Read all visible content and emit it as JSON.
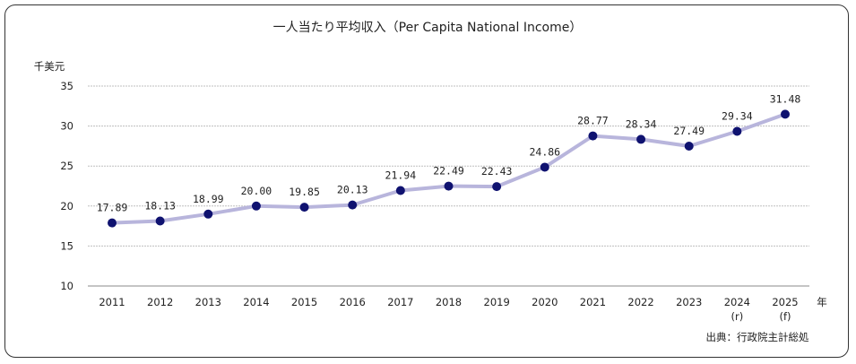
{
  "chart_data": {
    "type": "line",
    "title": "一人当たり平均収入（Per Capita National Income）",
    "ylabel": "千美元",
    "xlabel": "年",
    "categories": [
      "2011",
      "2012",
      "2013",
      "2014",
      "2015",
      "2016",
      "2017",
      "2018",
      "2019",
      "2020",
      "2021",
      "2022",
      "2023",
      "2024",
      "2025"
    ],
    "category_notes": [
      "",
      "",
      "",
      "",
      "",
      "",
      "",
      "",
      "",
      "",
      "",
      "",
      "",
      "(r)",
      "(f)"
    ],
    "series": [
      {
        "values": [
          17.89,
          18.13,
          18.99,
          20.0,
          19.85,
          20.13,
          21.94,
          22.49,
          22.43,
          24.86,
          28.77,
          28.34,
          27.49,
          29.34,
          31.48
        ],
        "labels": [
          "17.89",
          "18.13",
          "18.99",
          "20.00",
          "19.85",
          "20.13",
          "21.94",
          "22.49",
          "22.43",
          "24.86",
          "28.77",
          "28.34",
          "27.49",
          "29.34",
          "31.48"
        ]
      }
    ],
    "ylim": [
      10,
      35
    ],
    "yticks": [
      "10",
      "15",
      "20",
      "25",
      "30",
      "35"
    ],
    "grid": true,
    "colors": {
      "line": "#b8b5dc",
      "marker": "#0f1270",
      "grid": "#bfbfbf"
    }
  },
  "source": "出典：行政院主計総処"
}
